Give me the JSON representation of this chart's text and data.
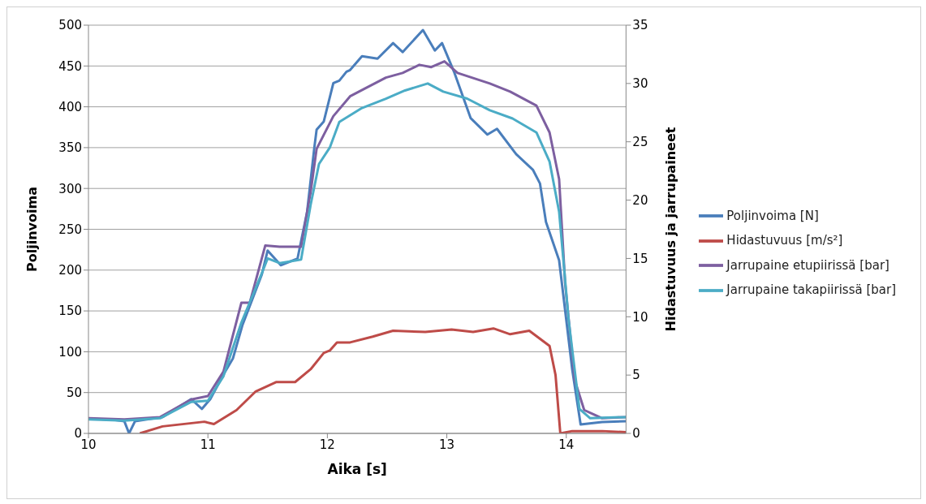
{
  "chart_data": {
    "type": "line",
    "xlabel": "Aika [s]",
    "ylabel": "Poljinvoima",
    "y2label": "Hidastuvuus ja jarrupaineet",
    "xlim": [
      10,
      14.5
    ],
    "xticks": [
      10,
      11,
      12,
      13,
      14
    ],
    "ylim": [
      0,
      500
    ],
    "yticks": [
      0,
      50,
      100,
      150,
      200,
      250,
      300,
      350,
      400,
      450,
      500
    ],
    "y2lim": [
      0,
      35
    ],
    "y2ticks": [
      0,
      5,
      10,
      15,
      20,
      25,
      30,
      35
    ],
    "grid": "y",
    "legend": "right",
    "marker": "none",
    "line_style": "solid",
    "series": [
      {
        "name": "Poljinvoima [N]",
        "color": "#4a7ebb",
        "x": [
          10,
          10.2,
          10.3,
          10.34,
          10.39,
          10.62,
          10.86,
          10.95,
          11.02,
          11.13,
          11.21,
          11.29,
          11.45,
          11.5,
          11.61,
          11.75,
          11.83,
          11.89,
          11.91,
          11.97,
          12.05,
          12.1,
          12.16,
          12.19,
          12.29,
          12.42,
          12.55,
          12.63,
          12.8,
          12.9,
          12.96,
          13.06,
          13.2,
          13.34,
          13.42,
          13.58,
          13.72,
          13.78,
          13.83,
          13.94,
          14.05,
          14.12,
          14.3,
          14.5
        ],
        "values": [
          18,
          17,
          15,
          0,
          15,
          20,
          42,
          30,
          42,
          72,
          92,
          133,
          194,
          224,
          206,
          214,
          271,
          349,
          372,
          382,
          429,
          432,
          443,
          445,
          462,
          459,
          478,
          467,
          494,
          469,
          478,
          443,
          386,
          366,
          373,
          342,
          323,
          306,
          259,
          212,
          78,
          11,
          14,
          15
        ]
      },
      {
        "name": "Hidastuvuus [m/s²]",
        "color": "#be4b48",
        "axis": "y2",
        "x": [
          10.43,
          10.62,
          10.97,
          11.05,
          11.24,
          11.4,
          11.57,
          11.73,
          11.86,
          11.97,
          12.02,
          12.08,
          12.19,
          12.38,
          12.55,
          12.82,
          13.04,
          13.22,
          13.39,
          13.53,
          13.69,
          13.86,
          13.91,
          13.95,
          14.05,
          14.3,
          14.5
        ],
        "values": [
          0,
          0.6,
          1.0,
          0.8,
          2.0,
          3.6,
          4.4,
          4.4,
          5.5,
          6.9,
          7.1,
          7.8,
          7.8,
          8.3,
          8.8,
          8.7,
          8.9,
          8.7,
          9.0,
          8.5,
          8.8,
          7.5,
          5.0,
          0,
          0.2,
          0.2,
          0.1
        ]
      },
      {
        "name": "Jarrupaine etupiirissä [bar]",
        "color": "#7d5fa0",
        "axis": "y2",
        "x": [
          10,
          10.3,
          10.6,
          10.86,
          11,
          11.13,
          11.28,
          11.35,
          11.48,
          11.6,
          11.78,
          11.86,
          11.91,
          12.05,
          12.19,
          12.32,
          12.49,
          12.63,
          12.77,
          12.87,
          12.98,
          13.09,
          13.36,
          13.53,
          13.75,
          13.86,
          13.94,
          13.99,
          14.07,
          14.15,
          14.3,
          14.5
        ],
        "values": [
          1.3,
          1.2,
          1.4,
          2.9,
          3.2,
          5.3,
          11.2,
          11.2,
          16.1,
          16.0,
          16.0,
          20.7,
          24.4,
          27.2,
          28.9,
          29.6,
          30.5,
          30.9,
          31.6,
          31.4,
          31.9,
          30.9,
          30.0,
          29.3,
          28.1,
          25.8,
          21.8,
          12.9,
          4.6,
          2.0,
          1.3,
          1.4
        ]
      },
      {
        "name": "Jarrupaine takapiirissä [bar]",
        "color": "#4bacc6",
        "axis": "y2",
        "x": [
          10,
          10.3,
          10.6,
          10.86,
          11,
          11.13,
          11.28,
          11.45,
          11.5,
          11.6,
          11.78,
          11.86,
          11.93,
          12.02,
          12.1,
          12.29,
          12.49,
          12.65,
          12.84,
          12.97,
          13.17,
          13.36,
          13.55,
          13.75,
          13.86,
          13.94,
          14.02,
          14.11,
          14.2,
          14.5
        ],
        "values": [
          1.2,
          1.1,
          1.3,
          2.7,
          2.8,
          4.9,
          9.5,
          13.7,
          15.0,
          14.6,
          14.9,
          19.6,
          23.1,
          24.5,
          26.7,
          27.9,
          28.7,
          29.4,
          30.0,
          29.3,
          28.7,
          27.7,
          27.0,
          25.8,
          23.3,
          19.0,
          9.7,
          2.1,
          1.3,
          1.4
        ]
      }
    ]
  }
}
